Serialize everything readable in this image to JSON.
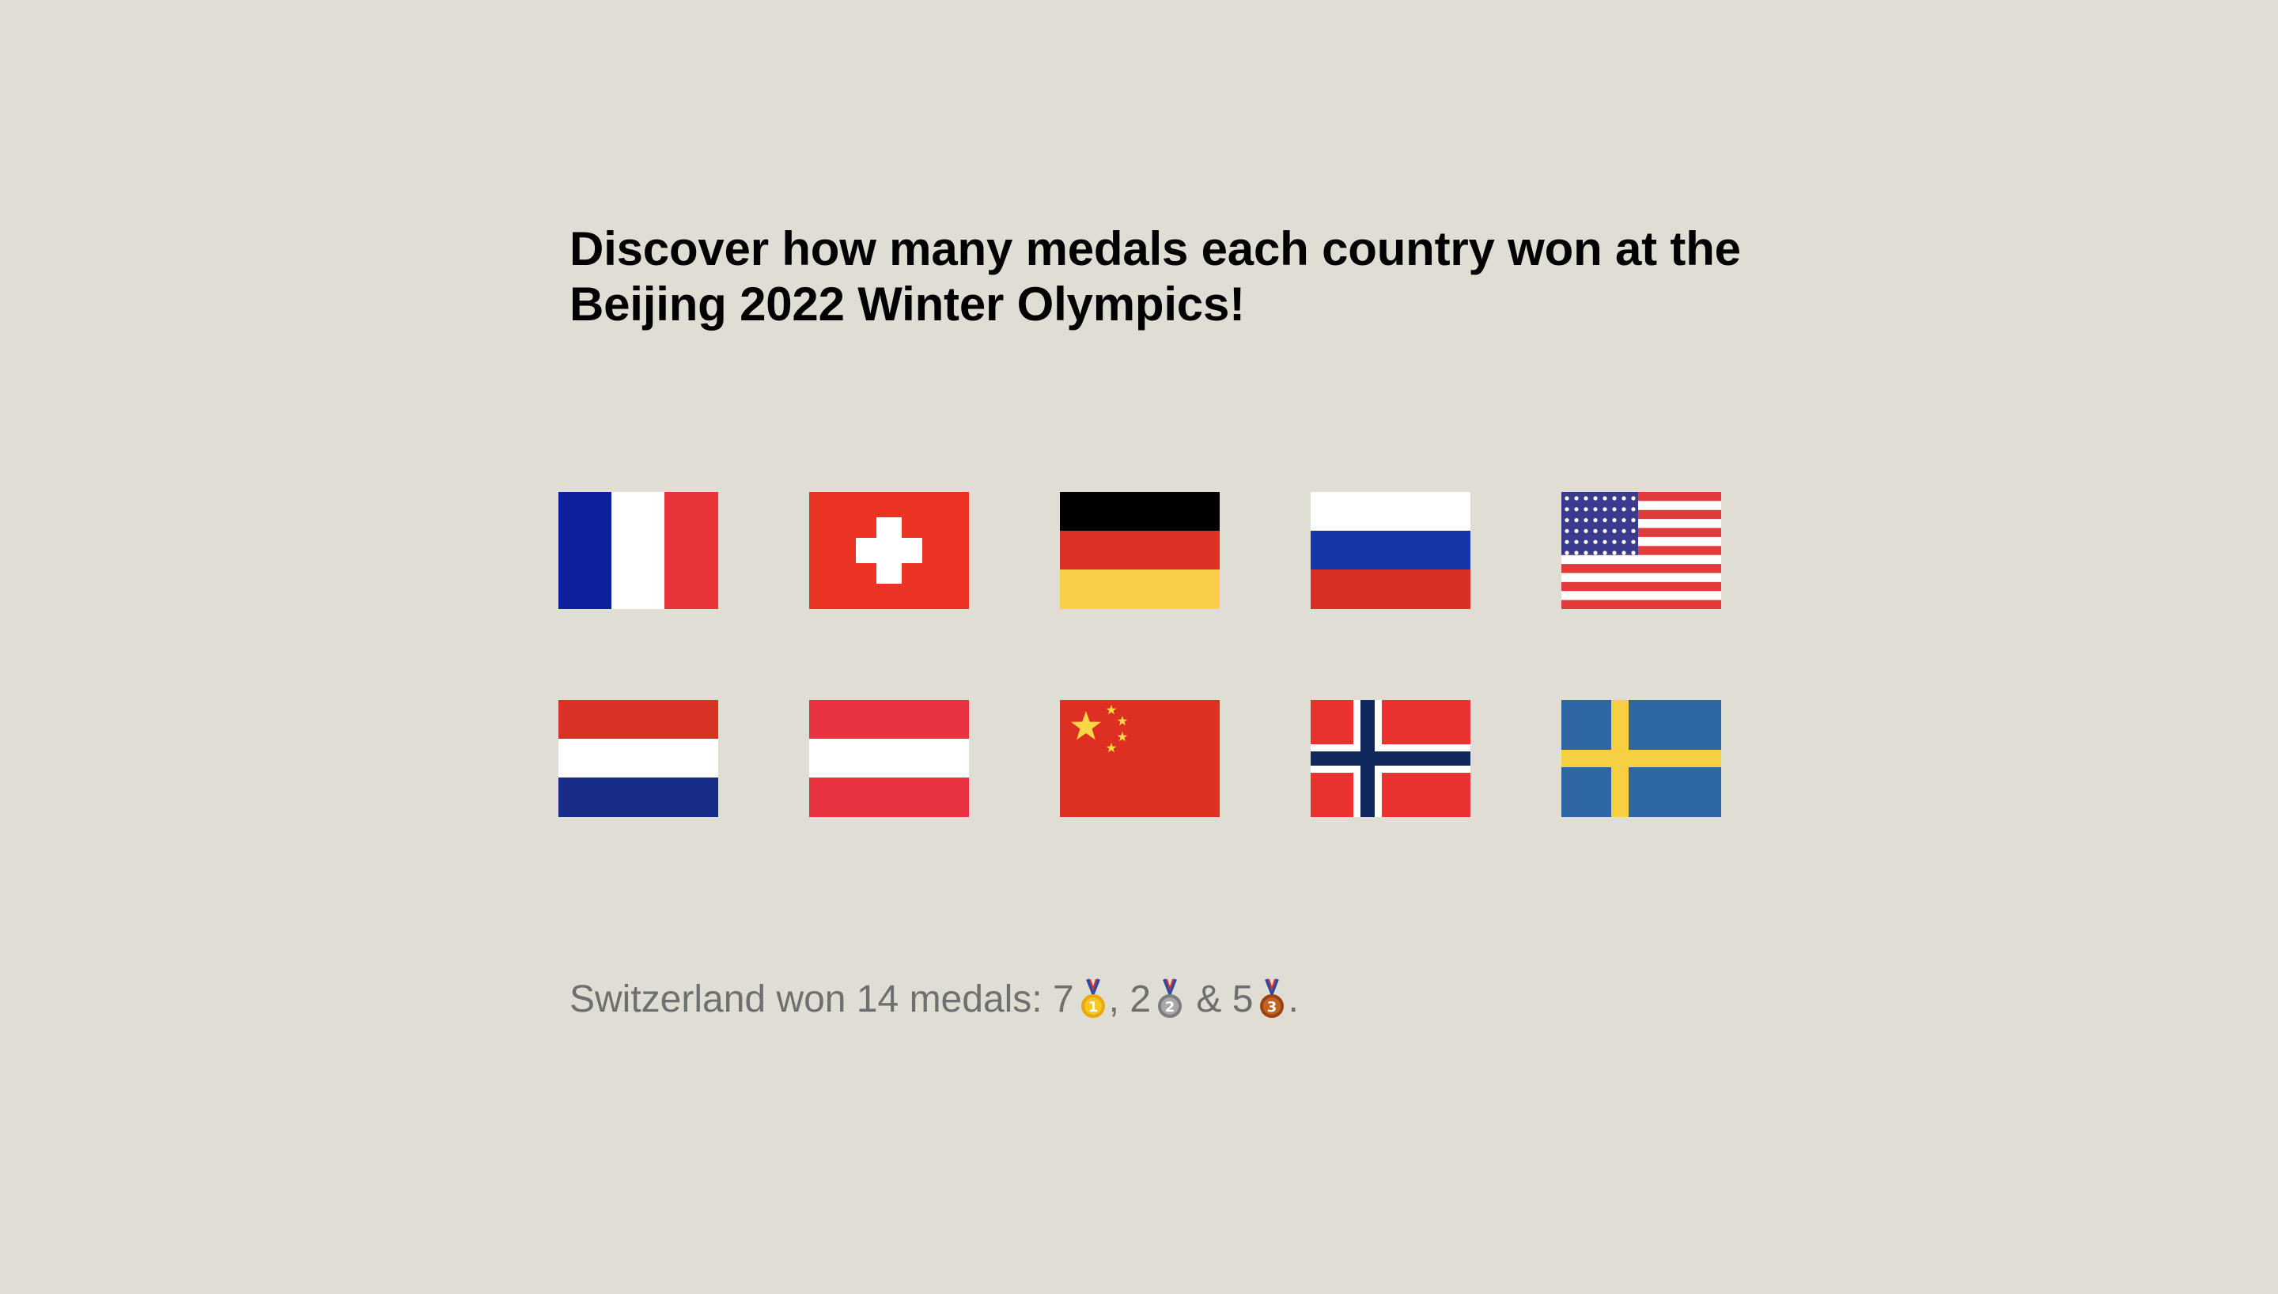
{
  "title": "Discover how many medals each country won at the Beijing 2022 Winter Olympics!",
  "flags": [
    {
      "country": "France",
      "icon": "flag-france-icon"
    },
    {
      "country": "Switzerland",
      "icon": "flag-switzerland-icon"
    },
    {
      "country": "Germany",
      "icon": "flag-germany-icon"
    },
    {
      "country": "Russia",
      "icon": "flag-russia-icon"
    },
    {
      "country": "United States",
      "icon": "flag-usa-icon"
    },
    {
      "country": "Netherlands",
      "icon": "flag-netherlands-icon"
    },
    {
      "country": "Austria",
      "icon": "flag-austria-icon"
    },
    {
      "country": "China",
      "icon": "flag-china-icon"
    },
    {
      "country": "Norway",
      "icon": "flag-norway-icon"
    },
    {
      "country": "Sweden",
      "icon": "flag-sweden-icon"
    }
  ],
  "result": {
    "prefix": "Switzerland won 14 medals: ",
    "gold": "7",
    "sep1": ", ",
    "silver": "2",
    "sep2": " & ",
    "bronze": "5",
    "suffix": ".",
    "icons": [
      "gold-medal-icon",
      "silver-medal-icon",
      "bronze-medal-icon"
    ]
  },
  "colors": {
    "background": "#e0ddd5",
    "title": "#000000",
    "result_text": "#6e706f"
  }
}
